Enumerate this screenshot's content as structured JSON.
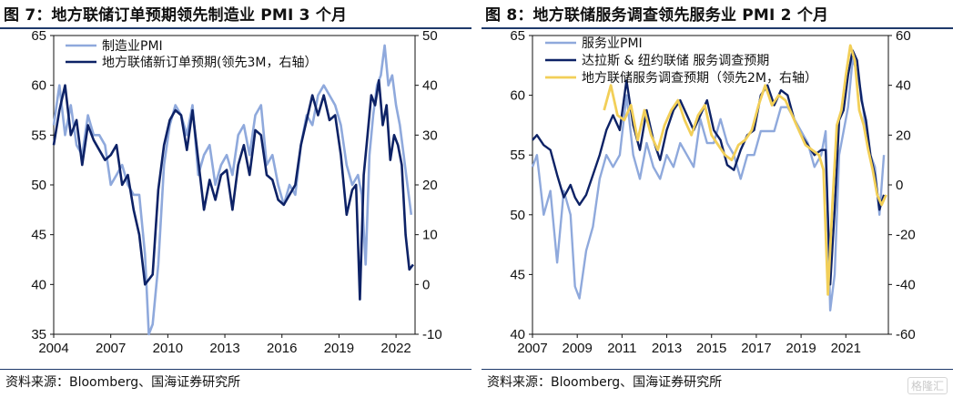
{
  "left": {
    "title": "图 7：地方联储订单预期领先制造业 PMI 3 个月",
    "source": "资料来源：Bloomberg、国海证券研究所"
  },
  "right": {
    "title": "图 8：地方联储服务调查领先服务业 PMI 2 个月",
    "source": "资料来源：Bloomberg、国海证券研究所"
  },
  "watermark": "格隆汇",
  "colors": {
    "light_blue": "#8fa9dc",
    "navy": "#0d2266",
    "gold": "#f2cf58",
    "rule": "#1f3a6b"
  },
  "chart_data": [
    {
      "type": "line",
      "x_ticks": [
        "2004",
        "2007",
        "2010",
        "2013",
        "2016",
        "2019",
        "2022"
      ],
      "ylim_left": [
        35,
        65
      ],
      "y_ticks_left": [
        35,
        40,
        45,
        50,
        55,
        60,
        65
      ],
      "ylim_right": [
        -10,
        50
      ],
      "y_ticks_right": [
        -10,
        0,
        10,
        20,
        30,
        40,
        50
      ],
      "series": [
        {
          "name": "制造业PMI",
          "axis": "left",
          "color": "#8fa9dc",
          "x": [
            2004.0,
            2004.3,
            2004.6,
            2004.9,
            2005.2,
            2005.5,
            2005.8,
            2006.1,
            2006.4,
            2006.7,
            2007.0,
            2007.3,
            2007.6,
            2007.9,
            2008.2,
            2008.5,
            2008.8,
            2009.0,
            2009.2,
            2009.5,
            2009.8,
            2010.1,
            2010.4,
            2010.7,
            2011.0,
            2011.3,
            2011.6,
            2011.9,
            2012.2,
            2012.5,
            2012.8,
            2013.1,
            2013.4,
            2013.7,
            2014.0,
            2014.3,
            2014.6,
            2014.9,
            2015.2,
            2015.5,
            2015.8,
            2016.1,
            2016.4,
            2016.7,
            2017.0,
            2017.3,
            2017.6,
            2017.9,
            2018.2,
            2018.5,
            2018.8,
            2019.1,
            2019.4,
            2019.7,
            2020.0,
            2020.2,
            2020.4,
            2020.6,
            2020.8,
            2021.0,
            2021.2,
            2021.4,
            2021.6,
            2021.8,
            2022.0,
            2022.2,
            2022.4,
            2022.6,
            2022.8
          ],
          "y": [
            56,
            60,
            55,
            58,
            54,
            53,
            57,
            55,
            55,
            54,
            50,
            51,
            52,
            50,
            49,
            49,
            43,
            35,
            36,
            42,
            52,
            56,
            58,
            57,
            55,
            58,
            51,
            53,
            54,
            50,
            52,
            53,
            51,
            55,
            56,
            53,
            57,
            58,
            52,
            53,
            50,
            48,
            50,
            49,
            54,
            57,
            56,
            59,
            60,
            59,
            58,
            56,
            52,
            50,
            51,
            49,
            42,
            53,
            57,
            60,
            61,
            64,
            60,
            61,
            58,
            56,
            53,
            50,
            47
          ]
        },
        {
          "name": "地方联储新订单预期(领先3M，右轴）",
          "axis": "right",
          "color": "#0d2266",
          "x": [
            2004.0,
            2004.3,
            2004.6,
            2004.9,
            2005.2,
            2005.5,
            2005.8,
            2006.1,
            2006.4,
            2006.7,
            2007.0,
            2007.3,
            2007.6,
            2007.9,
            2008.2,
            2008.5,
            2008.8,
            2009.0,
            2009.2,
            2009.5,
            2009.8,
            2010.1,
            2010.4,
            2010.7,
            2011.0,
            2011.3,
            2011.6,
            2011.9,
            2012.2,
            2012.5,
            2012.8,
            2013.1,
            2013.4,
            2013.7,
            2014.0,
            2014.3,
            2014.6,
            2014.9,
            2015.2,
            2015.5,
            2015.8,
            2016.1,
            2016.4,
            2016.7,
            2017.0,
            2017.3,
            2017.6,
            2017.9,
            2018.2,
            2018.5,
            2018.8,
            2019.1,
            2019.4,
            2019.7,
            2019.9,
            2020.1,
            2020.3,
            2020.5,
            2020.7,
            2020.9,
            2021.1,
            2021.3,
            2021.5,
            2021.7,
            2021.9,
            2022.1,
            2022.3,
            2022.5,
            2022.7,
            2022.9
          ],
          "y": [
            28,
            35,
            40,
            30,
            33,
            24,
            32,
            29,
            27,
            25,
            26,
            28,
            20,
            22,
            15,
            10,
            0,
            1,
            2,
            19,
            28,
            33,
            35,
            34,
            27,
            35,
            25,
            15,
            21,
            17,
            22,
            23,
            15,
            24,
            28,
            22,
            31,
            30,
            22,
            21,
            17,
            16,
            18,
            20,
            28,
            33,
            38,
            34,
            38,
            33,
            34,
            26,
            14,
            19,
            20,
            -3,
            22,
            30,
            38,
            36,
            41,
            32,
            36,
            25,
            30,
            28,
            24,
            10,
            3,
            4
          ]
        }
      ]
    },
    {
      "type": "line",
      "x_ticks": [
        "2007",
        "2009",
        "2011",
        "2013",
        "2015",
        "2017",
        "2019",
        "2021"
      ],
      "ylim_left": [
        40,
        65
      ],
      "y_ticks_left": [
        40,
        45,
        50,
        55,
        60,
        65
      ],
      "ylim_right": [
        -60,
        60
      ],
      "y_ticks_right": [
        -60,
        -40,
        -20,
        0,
        20,
        40,
        60
      ],
      "series": [
        {
          "name": "服务业PMI",
          "axis": "left",
          "color": "#8fa9dc",
          "x": [
            2007.0,
            2007.2,
            2007.5,
            2007.8,
            2008.1,
            2008.4,
            2008.7,
            2008.9,
            2009.1,
            2009.4,
            2009.7,
            2010.0,
            2010.3,
            2010.6,
            2010.9,
            2011.2,
            2011.5,
            2011.8,
            2012.1,
            2012.4,
            2012.7,
            2013.0,
            2013.3,
            2013.6,
            2013.9,
            2014.2,
            2014.5,
            2014.8,
            2015.1,
            2015.4,
            2015.7,
            2016.0,
            2016.3,
            2016.6,
            2016.9,
            2017.2,
            2017.5,
            2017.8,
            2018.1,
            2018.4,
            2018.7,
            2019.0,
            2019.3,
            2019.6,
            2019.9,
            2020.1,
            2020.3,
            2020.5,
            2020.7,
            2020.9,
            2021.1,
            2021.3,
            2021.5,
            2021.7,
            2021.9,
            2022.1,
            2022.3,
            2022.5,
            2022.7
          ],
          "y": [
            54,
            55,
            50,
            52,
            46,
            52,
            50,
            44,
            43,
            47,
            49,
            53,
            55,
            54,
            55,
            60,
            55,
            53,
            56,
            54,
            53,
            55,
            54,
            56,
            55,
            54,
            58,
            56,
            56,
            58,
            56,
            55,
            53,
            55,
            55,
            57,
            57,
            57,
            59,
            59,
            58,
            57,
            56,
            54,
            55,
            57,
            42,
            45,
            55,
            57,
            59,
            63,
            62,
            60,
            57,
            55,
            54,
            50,
            55
          ]
        },
        {
          "name": "达拉斯 & 纽约联储 服务调查预期",
          "axis": "right",
          "color": "#0d2266",
          "x": [
            2007.0,
            2007.2,
            2007.5,
            2007.8,
            2008.1,
            2008.4,
            2008.7,
            2008.9,
            2009.1,
            2009.4,
            2009.7,
            2010.0,
            2010.3,
            2010.6,
            2010.9,
            2011.2,
            2011.5,
            2011.8,
            2012.1,
            2012.4,
            2012.7,
            2013.0,
            2013.3,
            2013.6,
            2013.9,
            2014.2,
            2014.5,
            2014.8,
            2015.1,
            2015.4,
            2015.7,
            2016.0,
            2016.3,
            2016.6,
            2016.9,
            2017.2,
            2017.5,
            2017.8,
            2018.1,
            2018.4,
            2018.7,
            2019.0,
            2019.3,
            2019.6,
            2019.9,
            2020.1,
            2020.3,
            2020.5,
            2020.7,
            2020.9,
            2021.1,
            2021.3,
            2021.5,
            2021.7,
            2021.9,
            2022.1,
            2022.3,
            2022.5,
            2022.7
          ],
          "y": [
            18,
            20,
            16,
            14,
            4,
            -5,
            0,
            -5,
            -8,
            -4,
            4,
            12,
            22,
            28,
            22,
            42,
            24,
            14,
            30,
            18,
            10,
            22,
            30,
            34,
            28,
            22,
            28,
            34,
            22,
            18,
            8,
            6,
            14,
            20,
            22,
            36,
            40,
            32,
            38,
            36,
            26,
            20,
            16,
            12,
            14,
            14,
            -40,
            -10,
            26,
            30,
            44,
            54,
            50,
            34,
            26,
            12,
            4,
            -10,
            -4
          ]
        },
        {
          "name": "地方联储服务调查预期（领先2M，右轴）",
          "axis": "right",
          "color": "#f2cf58",
          "x": [
            2010.2,
            2010.5,
            2010.8,
            2011.1,
            2011.4,
            2011.7,
            2012.0,
            2012.3,
            2012.6,
            2012.9,
            2013.2,
            2013.5,
            2013.8,
            2014.1,
            2014.4,
            2014.7,
            2015.0,
            2015.3,
            2015.6,
            2015.9,
            2016.2,
            2016.5,
            2016.8,
            2017.1,
            2017.4,
            2017.7,
            2018.0,
            2018.3,
            2018.6,
            2018.9,
            2019.2,
            2019.5,
            2019.8,
            2020.0,
            2020.2,
            2020.4,
            2020.6,
            2020.8,
            2021.0,
            2021.2,
            2021.4,
            2021.6,
            2021.8,
            2022.0,
            2022.2,
            2022.4,
            2022.6,
            2022.8
          ],
          "y": [
            30,
            40,
            28,
            26,
            32,
            18,
            30,
            20,
            14,
            24,
            30,
            34,
            26,
            20,
            28,
            32,
            20,
            16,
            12,
            10,
            16,
            18,
            22,
            32,
            40,
            32,
            36,
            34,
            28,
            22,
            16,
            14,
            12,
            6,
            -44,
            -8,
            24,
            30,
            44,
            56,
            50,
            30,
            24,
            14,
            6,
            -4,
            -8,
            -4
          ]
        }
      ]
    }
  ]
}
